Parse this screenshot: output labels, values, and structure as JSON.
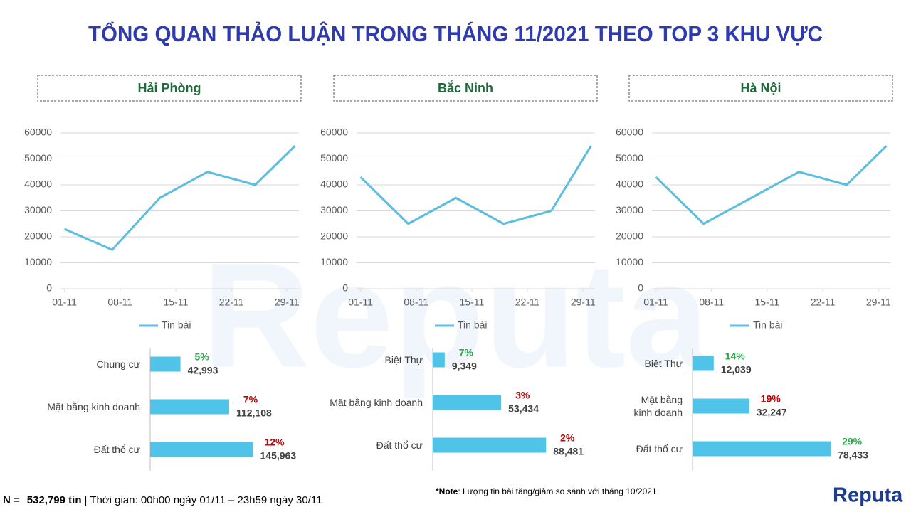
{
  "title": "TỔNG QUAN THẢO LUẬN TRONG THÁNG 11/2021 THEO TOP 3 KHU VỰC",
  "watermark": "Reputa",
  "logo": "Reputa",
  "footer": {
    "n_label": "N =",
    "n_value": "532,799 tin",
    "period": "| Thời gian: 00h00 ngày 01/11 – 23h59 ngày 30/11"
  },
  "note": {
    "prefix": "*Note",
    "text": ": Lượng tin bài tăng/giảm so sánh với tháng 10/2021"
  },
  "chart_data": [
    {
      "type": "line",
      "title": "Hải Phòng",
      "x": [
        1,
        7,
        13,
        19,
        25,
        30
      ],
      "xlim": [
        0.5,
        30.5
      ],
      "xticks": [
        {
          "value": 1,
          "label": "01-11"
        },
        {
          "value": 8,
          "label": "08-11"
        },
        {
          "value": 15,
          "label": "15-11"
        },
        {
          "value": 22,
          "label": "22-11"
        },
        {
          "value": 29,
          "label": "29-11"
        }
      ],
      "ylim": [
        0,
        60000
      ],
      "yticks": [
        0,
        10000,
        20000,
        30000,
        40000,
        50000,
        60000
      ],
      "grid": true,
      "series": [
        {
          "name": "Tin bài",
          "color": "#5bbde0",
          "values": [
            23000,
            15000,
            35000,
            45000,
            40000,
            55000
          ]
        }
      ]
    },
    {
      "type": "line",
      "title": "Bắc Ninh",
      "x": [
        1,
        7,
        13,
        19,
        25,
        30
      ],
      "xlim": [
        0.5,
        30.5
      ],
      "xticks": [
        {
          "value": 1,
          "label": "01-11"
        },
        {
          "value": 8,
          "label": "08-11"
        },
        {
          "value": 15,
          "label": "15-11"
        },
        {
          "value": 22,
          "label": "22-11"
        },
        {
          "value": 29,
          "label": "29-11"
        }
      ],
      "ylim": [
        0,
        60000
      ],
      "yticks": [
        0,
        10000,
        20000,
        30000,
        40000,
        50000,
        60000
      ],
      "grid": true,
      "series": [
        {
          "name": "Tin bài",
          "color": "#5bbde0",
          "values": [
            43000,
            25000,
            35000,
            25000,
            30000,
            55000
          ]
        }
      ]
    },
    {
      "type": "line",
      "title": "Hà Nội",
      "x": [
        1,
        7,
        13,
        19,
        25,
        30
      ],
      "xlim": [
        0.5,
        30.5
      ],
      "xticks": [
        {
          "value": 1,
          "label": "01-11"
        },
        {
          "value": 8,
          "label": "08-11"
        },
        {
          "value": 15,
          "label": "15-11"
        },
        {
          "value": 22,
          "label": "22-11"
        },
        {
          "value": 29,
          "label": "29-11"
        }
      ],
      "ylim": [
        0,
        60000
      ],
      "yticks": [
        0,
        10000,
        20000,
        30000,
        40000,
        50000,
        60000
      ],
      "grid": true,
      "series": [
        {
          "name": "Tin bài",
          "color": "#5bbde0",
          "values": [
            43000,
            25000,
            35000,
            45000,
            40000,
            55000
          ]
        }
      ]
    },
    {
      "type": "bar",
      "orientation": "horizontal",
      "color": "#4fc3e8",
      "xlim": [
        0,
        200000
      ],
      "categories": [
        "Chung cư",
        "Mặt bằng kinh doanh",
        "Đất thổ cư"
      ],
      "values": [
        42993,
        112108,
        145963
      ],
      "value_labels": [
        "42,993",
        "112,108",
        "145,963"
      ],
      "changes": [
        "5%",
        "7%",
        "12%"
      ],
      "change_colors": [
        "#2ea84a",
        "#c00000",
        "#c00000"
      ]
    },
    {
      "type": "bar",
      "orientation": "horizontal",
      "color": "#4fc3e8",
      "xlim": [
        0,
        110000
      ],
      "categories": [
        "Biệt Thự",
        "Mặt bằng kinh doanh",
        "Đất thổ cư"
      ],
      "values": [
        9349,
        53434,
        88481
      ],
      "value_labels": [
        "9,349",
        "53,434",
        "88,481"
      ],
      "changes": [
        "7%",
        "3%",
        "2%"
      ],
      "change_colors": [
        "#2ea84a",
        "#c00000",
        "#c00000"
      ]
    },
    {
      "type": "bar",
      "orientation": "horizontal",
      "color": "#4fc3e8",
      "xlim": [
        0,
        80000
      ],
      "categories": [
        "Biệt Thự",
        "Mặt bằng\nkinh doanh",
        "Đất thổ cư"
      ],
      "values": [
        12039,
        32247,
        78433
      ],
      "value_labels": [
        "12,039",
        "32,247",
        "78,433"
      ],
      "changes": [
        "14%",
        "19%",
        "29%"
      ],
      "change_colors": [
        "#2ea84a",
        "#c00000",
        "#2ea84a"
      ]
    }
  ]
}
